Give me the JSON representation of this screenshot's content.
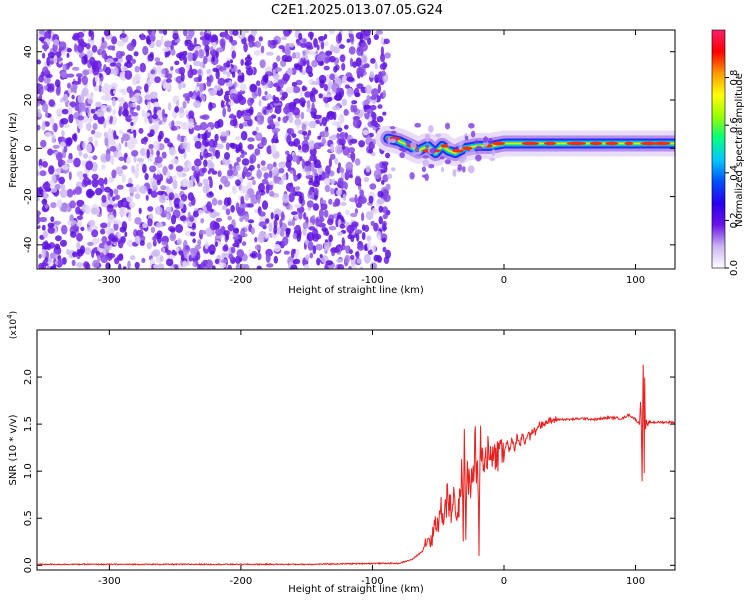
{
  "title": "C2E1.2025.013.07.05.G24",
  "chart_data": [
    {
      "type": "heatmap",
      "xlabel": "Height of straight line (km)",
      "ylabel": "Frequency (Hz)",
      "xlim": [
        -355,
        130
      ],
      "ylim": [
        -50,
        49
      ],
      "x_ticks": [
        -300,
        -200,
        -100,
        0,
        100
      ],
      "x_tick_labels": [
        "-300",
        "-200",
        "-100",
        "0",
        "100"
      ],
      "y_ticks": [
        -40,
        -20,
        0,
        20,
        40
      ],
      "y_tick_labels": [
        "-40",
        "-20",
        "0",
        "20",
        "40"
      ],
      "noise_region_x": [
        -355,
        -88
      ],
      "signal_start_x": -88,
      "signal_frequency_track": [
        {
          "x": -88,
          "y": 4
        },
        {
          "x": -80,
          "y": 3
        },
        {
          "x": -72,
          "y": 1
        },
        {
          "x": -65,
          "y": -1
        },
        {
          "x": -58,
          "y": 1
        },
        {
          "x": -52,
          "y": -2
        },
        {
          "x": -47,
          "y": 1
        },
        {
          "x": -42,
          "y": -1
        },
        {
          "x": -37,
          "y": -2
        },
        {
          "x": -30,
          "y": 0
        },
        {
          "x": -20,
          "y": 1
        },
        {
          "x": -10,
          "y": 1
        },
        {
          "x": 0,
          "y": 2
        },
        {
          "x": 20,
          "y": 2
        },
        {
          "x": 50,
          "y": 2
        },
        {
          "x": 80,
          "y": 2
        },
        {
          "x": 95,
          "y": 2
        },
        {
          "x": 110,
          "y": 2
        },
        {
          "x": 130,
          "y": 2
        }
      ],
      "colorbar": {
        "label": "Normalized spectral amplitude",
        "range": [
          0,
          1
        ],
        "ticks": [
          0.0,
          0.2,
          0.4,
          0.6,
          0.8
        ],
        "tick_labels": [
          "0.0",
          "0.2",
          "0.4",
          "0.6",
          "0.8"
        ],
        "colors": [
          "#ffffff",
          "#cbb4f2",
          "#6a14e8",
          "#2a00f0",
          "#0050ff",
          "#00c8ff",
          "#00ff80",
          "#9aff00",
          "#ffff00",
          "#ff9a00",
          "#ff0000",
          "#ff1f6e"
        ]
      }
    },
    {
      "type": "line",
      "xlabel": "Height of straight line (km)",
      "ylabel": "SNR (10 * v/v)",
      "scale_label_base": "(x10",
      "scale_label_exp": "4",
      "scale_label_close": ")",
      "xlim": [
        -355,
        130
      ],
      "ylim": [
        -0.05,
        2.5
      ],
      "x_ticks": [
        -300,
        -200,
        -100,
        0,
        100
      ],
      "x_tick_labels": [
        "-300",
        "-200",
        "-100",
        "0",
        "100"
      ],
      "y_ticks": [
        0.0,
        0.5,
        1.0,
        1.5,
        2.0
      ],
      "y_tick_labels": [
        "0.0",
        "0.5",
        "1.0",
        "1.5",
        "2.0"
      ],
      "series": [
        {
          "color": "#e8211f",
          "x": [
            -355,
            -300,
            -250,
            -200,
            -150,
            -100,
            -80,
            -70,
            -62,
            -58,
            -55,
            -52,
            -50,
            -48,
            -46,
            -45,
            -44,
            -43,
            -42,
            -41,
            -40,
            -38,
            -36,
            -34,
            -32,
            -31,
            -30,
            -29,
            -28,
            -27,
            -26,
            -25,
            -24,
            -23,
            -22,
            -21,
            -20,
            -19,
            -18,
            -17,
            -16,
            -15,
            -14,
            -13,
            -12,
            -11,
            -10,
            -8,
            -6,
            -4,
            -2,
            0,
            2,
            4,
            6,
            8,
            10,
            12,
            14,
            16,
            18,
            20,
            22,
            24,
            26,
            28,
            30,
            35,
            40,
            50,
            60,
            70,
            80,
            90,
            95,
            100,
            103,
            104,
            105,
            106,
            106.5,
            107,
            107.5,
            108,
            109,
            110,
            115,
            120,
            130
          ],
          "values": [
            0.01,
            0.01,
            0.01,
            0.01,
            0.01,
            0.02,
            0.02,
            0.06,
            0.15,
            0.3,
            0.25,
            0.5,
            0.4,
            0.62,
            0.45,
            0.75,
            0.5,
            0.98,
            0.55,
            0.7,
            0.5,
            0.85,
            0.45,
            0.65,
            1.0,
            0.35,
            1.55,
            0.2,
            1.2,
            0.85,
            1.0,
            0.75,
            1.1,
            0.9,
            1.35,
            0.95,
            1.2,
            0.1,
            1.38,
            1.0,
            1.25,
            0.9,
            1.4,
            1.05,
            1.3,
            1.05,
            1.3,
            1.1,
            1.25,
            1.15,
            1.3,
            1.15,
            1.33,
            1.2,
            1.36,
            1.22,
            1.38,
            1.25,
            1.4,
            1.3,
            1.42,
            1.35,
            1.45,
            1.4,
            1.5,
            1.48,
            1.52,
            1.53,
            1.55,
            1.55,
            1.56,
            1.55,
            1.57,
            1.56,
            1.6,
            1.55,
            1.5,
            1.8,
            0.9,
            2.45,
            0.72,
            2.0,
            1.3,
            1.55,
            1.48,
            1.52,
            1.52,
            1.52,
            1.52
          ]
        }
      ]
    }
  ]
}
